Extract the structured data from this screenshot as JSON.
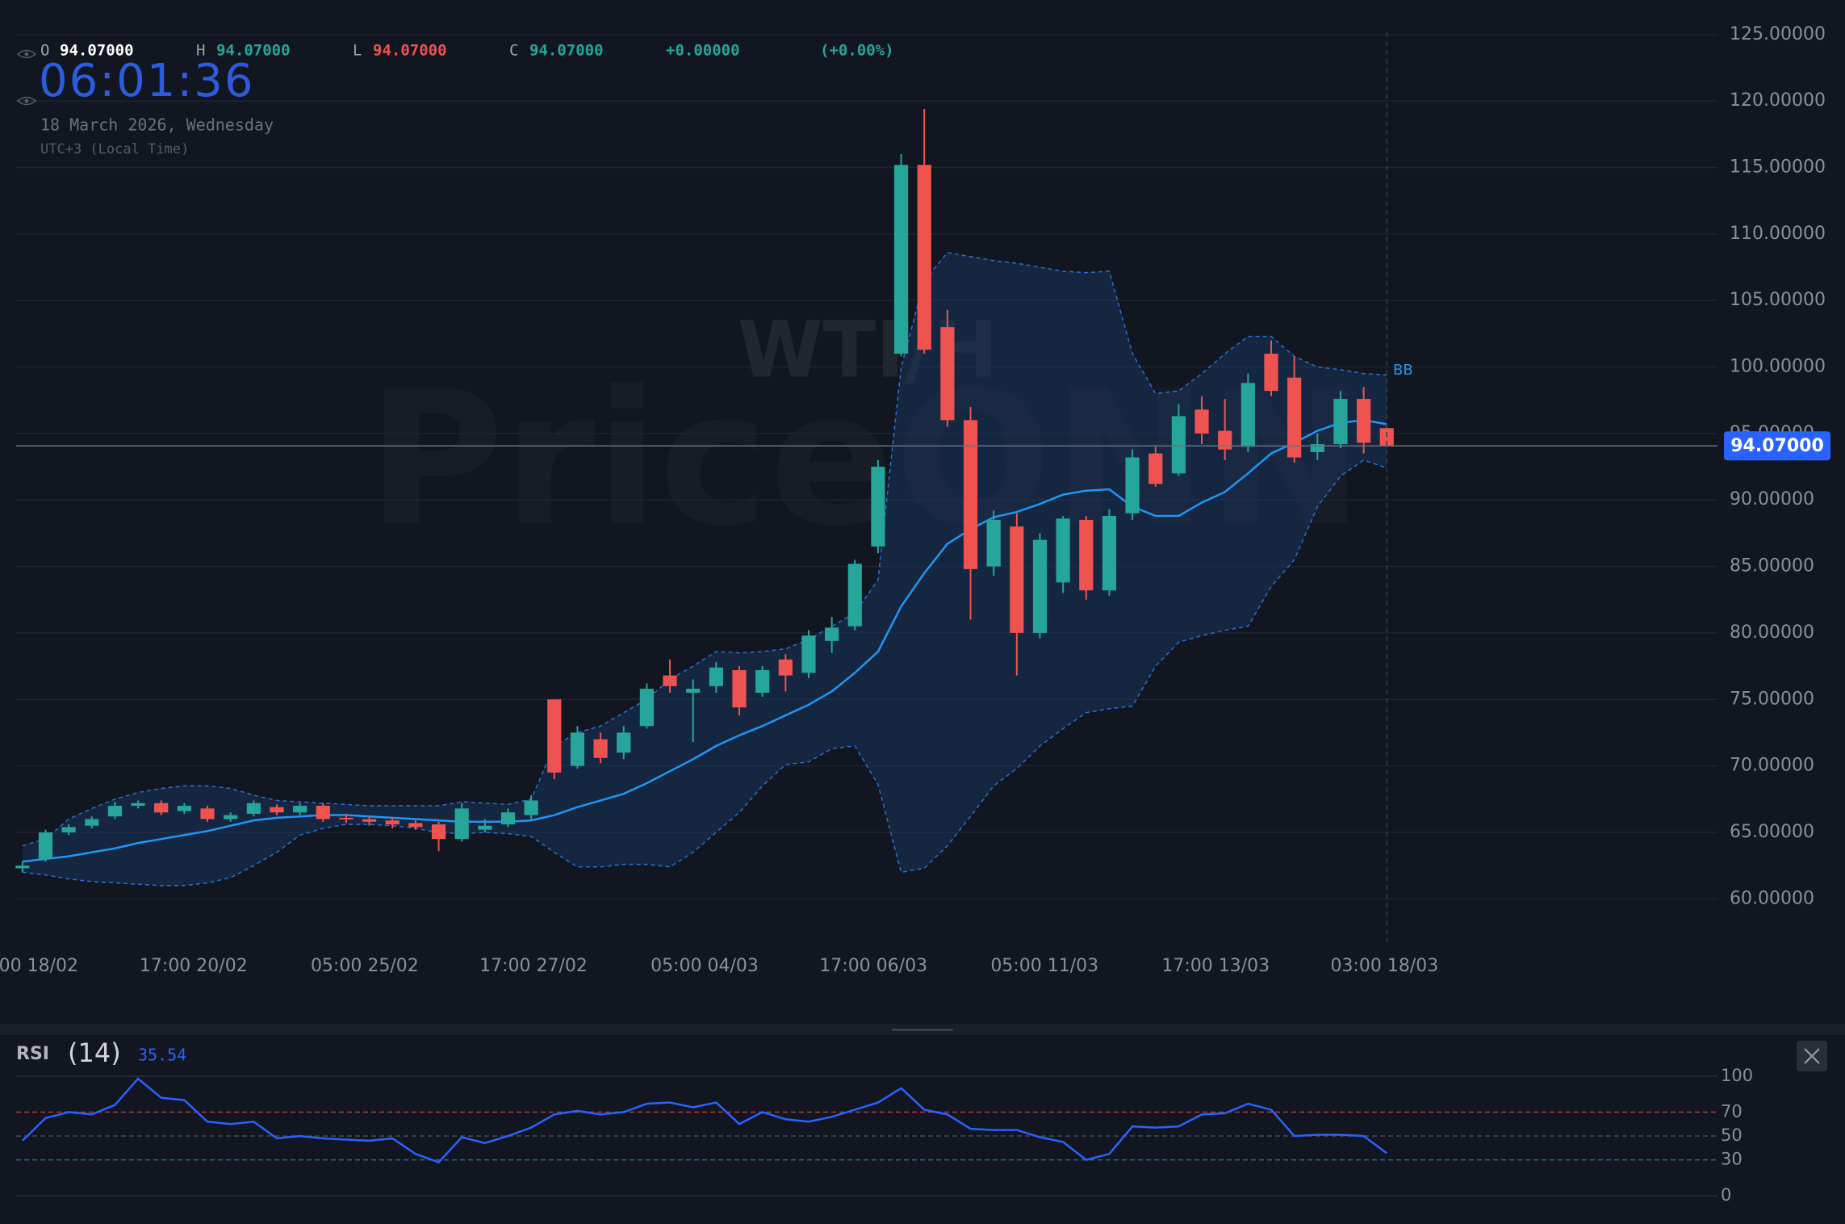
{
  "chart_data": [
    {
      "type": "candlestick",
      "title": "WTI/H",
      "watermark": "PriceONN",
      "clock": "06:01:36",
      "date": "18 March 2026, Wednesday",
      "timezone": "UTC+3 (Local Time)",
      "ohlc_legend": [
        {
          "key": "O",
          "text": "94.07000",
          "color": "#ffffff"
        },
        {
          "key": "H",
          "text": "94.07000",
          "color": "#26a69a"
        },
        {
          "key": "L",
          "text": "94.07000",
          "color": "#ef5350"
        },
        {
          "key": "C",
          "text": "94.07000",
          "color": "#26a69a"
        }
      ],
      "change": "+0.00000",
      "change_pct": "(+0.00%)",
      "last_price": {
        "value": 94.07,
        "label": "94.07000"
      },
      "indicator_label": "BB",
      "up_color": "#26a69a",
      "down_color": "#ef5350",
      "open": [
        62.3,
        63,
        65,
        65.5,
        66.2,
        67,
        67.2,
        66.6,
        66.8,
        66,
        66.4,
        66.9,
        66.5,
        67,
        66.1,
        66,
        65.9,
        65.7,
        65.6,
        64.5,
        65.2,
        65.6,
        66.3,
        75,
        70,
        72,
        71,
        73,
        76.8,
        75.5,
        76,
        77.2,
        75.5,
        78,
        77,
        79.4,
        80.5,
        86.5,
        101,
        115.2,
        103,
        96,
        85,
        88,
        80,
        83.8,
        88.5,
        83.2,
        89,
        93.5,
        92,
        96.8,
        95.2,
        94,
        101,
        99.2,
        93.6,
        94.2,
        97.6,
        95.4
      ],
      "high": [
        62.8,
        65.2,
        65.6,
        66.2,
        67.3,
        67.4,
        67.4,
        67.2,
        67,
        66.5,
        67.4,
        67.1,
        67.2,
        67.2,
        66.4,
        66.2,
        66.1,
        65.9,
        65.8,
        67.2,
        66,
        66.8,
        67.8,
        75,
        73,
        72.5,
        73,
        76.2,
        78,
        76.5,
        77.8,
        77.5,
        77.5,
        78.4,
        80.2,
        81.2,
        85.5,
        93,
        116,
        119.4,
        104.3,
        97,
        89.2,
        89,
        87.5,
        88.8,
        88.8,
        89.3,
        93.8,
        94,
        97.2,
        97.8,
        97.6,
        99.5,
        102,
        100.8,
        95,
        98.2,
        98.5,
        95.6
      ],
      "low": [
        62,
        62.8,
        64.8,
        65.3,
        66,
        66.8,
        66.3,
        66.4,
        65.8,
        65.8,
        66.2,
        66.3,
        66.3,
        65.8,
        65.7,
        65.5,
        65.3,
        65.2,
        63.6,
        64.3,
        65,
        65.4,
        66,
        69,
        69.8,
        70.2,
        70.5,
        72.8,
        75.5,
        71.8,
        75.5,
        73.8,
        75.2,
        75.6,
        76.6,
        78.5,
        80.2,
        86,
        100.8,
        101,
        95.5,
        81,
        84.3,
        76.8,
        79.6,
        83,
        82.5,
        82.8,
        88.5,
        91,
        91.8,
        94.2,
        93,
        93.6,
        97.8,
        92.8,
        93,
        93.9,
        93.5,
        94
      ],
      "close": [
        62.5,
        65,
        65.4,
        66,
        67,
        67.2,
        66.5,
        67,
        66,
        66.3,
        67.2,
        66.5,
        67,
        66,
        66,
        65.8,
        65.6,
        65.4,
        64.5,
        66.8,
        65.5,
        66.5,
        67.4,
        69.5,
        72.5,
        70.6,
        72.5,
        75.8,
        76,
        75.8,
        77.4,
        74.4,
        77.2,
        76.8,
        79.8,
        80.4,
        85.2,
        92.5,
        115.2,
        101.3,
        96,
        84.8,
        88.5,
        80,
        87,
        88.6,
        83.2,
        88.8,
        93.2,
        91.2,
        96.3,
        95,
        93.8,
        98.8,
        98.2,
        93.2,
        94.2,
        97.6,
        94.3,
        94.07
      ],
      "series": [
        {
          "name": "upper",
          "color": "#2a6fd0",
          "values": [
            64,
            64.5,
            66,
            66.8,
            67.5,
            68,
            68.3,
            68.5,
            68.5,
            68.3,
            67.8,
            67.4,
            67.3,
            67.2,
            67.1,
            67,
            67,
            67,
            67,
            67.3,
            67.2,
            67.1,
            67.5,
            71.5,
            72.5,
            73,
            74,
            75,
            76.5,
            77.5,
            78.6,
            78.5,
            78.6,
            78.8,
            79.5,
            80.5,
            81.5,
            84,
            100,
            106.5,
            108.6,
            108.3,
            108,
            107.8,
            107.5,
            107.2,
            107.1,
            107.2,
            101,
            98,
            98.2,
            99.5,
            101,
            102.3,
            102.3,
            100.8,
            100,
            99.8,
            99.5,
            99.4
          ]
        },
        {
          "name": "basis",
          "color": "#2196f3",
          "values": [
            62.8,
            63,
            63.2,
            63.5,
            63.8,
            64.2,
            64.5,
            64.8,
            65.1,
            65.5,
            65.9,
            66.1,
            66.2,
            66.3,
            66.3,
            66.2,
            66.1,
            66,
            65.9,
            65.8,
            65.8,
            65.8,
            65.9,
            66.3,
            66.9,
            67.4,
            67.9,
            68.7,
            69.6,
            70.5,
            71.5,
            72.3,
            73,
            73.8,
            74.6,
            75.6,
            77,
            78.6,
            82,
            84.5,
            86.7,
            87.8,
            88.7,
            89.1,
            89.7,
            90.4,
            90.7,
            90.8,
            89.5,
            88.8,
            88.8,
            89.8,
            90.6,
            92,
            93.5,
            94.3,
            95.2,
            95.8,
            96,
            95.7
          ]
        },
        {
          "name": "lower",
          "color": "#2a6fd0",
          "values": [
            62,
            61.8,
            61.5,
            61.3,
            61.2,
            61.1,
            61,
            61,
            61.2,
            61.6,
            62.5,
            63.5,
            64.8,
            65.3,
            65.6,
            65.6,
            65.5,
            65.3,
            65,
            64.9,
            65,
            64.9,
            64.7,
            63.5,
            62.4,
            62.4,
            62.6,
            62.6,
            62.4,
            63.5,
            65,
            66.5,
            68.5,
            70.1,
            70.3,
            71.3,
            71.5,
            68.6,
            62,
            62.3,
            64,
            66.2,
            68.5,
            69.8,
            71.5,
            72.8,
            74,
            74.3,
            74.5,
            77.5,
            79.3,
            79.8,
            80.2,
            80.5,
            83.5,
            85.5,
            89.5,
            91.8,
            93,
            92.4
          ]
        }
      ],
      "xlim": [
        -0.97,
        73.3
      ],
      "xticks": [
        {
          "value": 0.7,
          "label": "00 18/02"
        },
        {
          "value": 7.4,
          "label": "17:00 20/02"
        },
        {
          "value": 14.8,
          "label": "05:00 25/02"
        },
        {
          "value": 22.1,
          "label": "17:00 27/02"
        },
        {
          "value": 29.5,
          "label": "05:00 04/03"
        },
        {
          "value": 36.8,
          "label": "17:00 06/03"
        },
        {
          "value": 44.2,
          "label": "05:00 11/03"
        },
        {
          "value": 51.6,
          "label": "17:00 13/03"
        },
        {
          "value": 58.9,
          "label": "03:00 18/03"
        }
      ],
      "ylim": [
        56.8,
        127.6
      ],
      "yticks": [
        {
          "value": 125,
          "label": "125.00000"
        },
        {
          "value": 120,
          "label": "120.00000"
        },
        {
          "value": 115,
          "label": "115.00000"
        },
        {
          "value": 110,
          "label": "110.00000"
        },
        {
          "value": 105,
          "label": "105.00000"
        },
        {
          "value": 100,
          "label": "100.00000"
        },
        {
          "value": 95,
          "label": "95.00000"
        },
        {
          "value": 90,
          "label": "90.00000"
        },
        {
          "value": 85,
          "label": "85.00000"
        },
        {
          "value": 80,
          "label": "80.00000"
        },
        {
          "value": 75,
          "label": "75.00000"
        },
        {
          "value": 70,
          "label": "70.00000"
        },
        {
          "value": 65,
          "label": "65.00000"
        },
        {
          "value": 60,
          "label": "60.00000"
        }
      ],
      "grid": true
    },
    {
      "type": "line",
      "title": "RSI",
      "subtitle": "(14)",
      "color": "#2962ff",
      "values": [
        46,
        65,
        70,
        68,
        76,
        98,
        82,
        80,
        62,
        60,
        62,
        48,
        50,
        48,
        47,
        46,
        48,
        35,
        28,
        49,
        44,
        50,
        57,
        68,
        71,
        68,
        70,
        77,
        78,
        74,
        78,
        60,
        70,
        64,
        62,
        66,
        72,
        78,
        90,
        72,
        68,
        56,
        55,
        55,
        49,
        45,
        30,
        35,
        58,
        57,
        58,
        68,
        69,
        77,
        72,
        50,
        51,
        51,
        50,
        35.54
      ],
      "xlim": [
        -0.97,
        73.3
      ],
      "ylim": [
        0,
        100
      ],
      "yticks": [
        0,
        30,
        50,
        70,
        100
      ]
    }
  ]
}
